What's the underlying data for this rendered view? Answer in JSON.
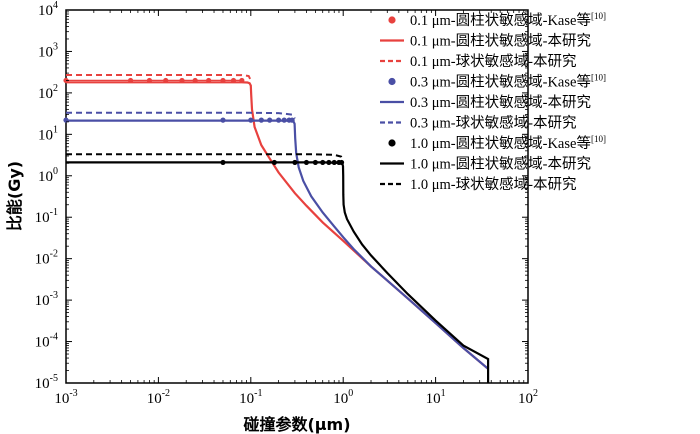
{
  "chart_data": {
    "type": "line",
    "xscale": "log",
    "yscale": "log",
    "xlim": [
      0.001,
      100
    ],
    "ylim": [
      1e-05,
      10000
    ],
    "xlabel": "碰撞参数(μm)",
    "ylabel": "比能(Gy)",
    "x_ticks": [
      {
        "value": 0.001,
        "base": "10",
        "exp": "-3"
      },
      {
        "value": 0.01,
        "base": "10",
        "exp": "-2"
      },
      {
        "value": 0.1,
        "base": "10",
        "exp": "-1"
      },
      {
        "value": 1,
        "base": "10",
        "exp": "0"
      },
      {
        "value": 10,
        "base": "10",
        "exp": "1"
      },
      {
        "value": 100,
        "base": "10",
        "exp": "2"
      }
    ],
    "y_ticks": [
      {
        "value": 1e-05,
        "base": "10",
        "exp": "-5"
      },
      {
        "value": 0.0001,
        "base": "10",
        "exp": "-4"
      },
      {
        "value": 0.001,
        "base": "10",
        "exp": "-3"
      },
      {
        "value": 0.01,
        "base": "10",
        "exp": "-2"
      },
      {
        "value": 0.1,
        "base": "10",
        "exp": "-1"
      },
      {
        "value": 1,
        "base": "10",
        "exp": "0"
      },
      {
        "value": 10,
        "base": "10",
        "exp": "1"
      },
      {
        "value": 100,
        "base": "10",
        "exp": "2"
      },
      {
        "value": 1000,
        "base": "10",
        "exp": "3"
      },
      {
        "value": 10000,
        "base": "10",
        "exp": "4"
      }
    ],
    "legend_position": "top-right",
    "series": [
      {
        "name": "0.1 μm-圆柱状敏感域-Kase等",
        "ref": "[10]",
        "style": "markers",
        "color": "#e8413e",
        "x": [
          0.001,
          0.005,
          0.008,
          0.012,
          0.018,
          0.025,
          0.035,
          0.05,
          0.065,
          0.08
        ],
        "y": [
          200,
          200,
          200,
          200,
          200,
          200,
          200,
          200,
          200,
          200
        ]
      },
      {
        "name": "0.1 μm-圆柱状敏感域-本研究",
        "style": "solid",
        "color": "#e8413e",
        "x": [
          0.001,
          0.05,
          0.08,
          0.092,
          0.097,
          0.1,
          0.101,
          0.103,
          0.11,
          0.13,
          0.16,
          0.2,
          0.3,
          0.4,
          0.6,
          1.0,
          2,
          5,
          10,
          20,
          37
        ],
        "y": [
          180,
          180,
          180,
          178,
          170,
          150,
          90,
          40,
          15,
          5.5,
          2.6,
          1.2,
          0.38,
          0.19,
          0.075,
          0.027,
          0.0065,
          0.0011,
          0.00028,
          7e-05,
          2.2e-05
        ]
      },
      {
        "name": "0.1 μm-球状敏感域-本研究",
        "style": "dashed",
        "color": "#e8413e",
        "x": [
          0.001,
          0.05,
          0.08,
          0.095,
          0.1
        ],
        "y": [
          270,
          270,
          268,
          255,
          200
        ]
      },
      {
        "name": "0.3 μm-圆柱状敏感域-Kase等",
        "ref": "[10]",
        "style": "markers",
        "color": "#4a4fa5",
        "x": [
          0.001,
          0.05,
          0.1,
          0.13,
          0.16,
          0.2,
          0.23,
          0.26,
          0.28
        ],
        "y": [
          22,
          22,
          22,
          22,
          22,
          22,
          22,
          22,
          22
        ]
      },
      {
        "name": "0.3 μm-圆柱状敏感域-本研究",
        "style": "solid",
        "color": "#4a4fa5",
        "x": [
          0.001,
          0.1,
          0.2,
          0.27,
          0.29,
          0.298,
          0.302,
          0.31,
          0.33,
          0.37,
          0.45,
          0.6,
          0.8,
          1.0,
          1.3,
          2,
          5,
          10,
          20,
          37
        ],
        "y": [
          21.5,
          21.5,
          21.5,
          21.2,
          20.5,
          18,
          8,
          3.5,
          1.6,
          0.75,
          0.32,
          0.13,
          0.06,
          0.033,
          0.017,
          0.0065,
          0.0011,
          0.00028,
          7e-05,
          2.2e-05
        ]
      },
      {
        "name": "0.3 μm-球状敏感域-本研究",
        "style": "dashed",
        "color": "#4a4fa5",
        "x": [
          0.001,
          0.1,
          0.2,
          0.28,
          0.3
        ],
        "y": [
          33,
          33,
          32.5,
          30,
          24
        ]
      },
      {
        "name": "1.0 μm-圆柱状敏感域-Kase等",
        "ref": "[10]",
        "style": "markers",
        "color": "#000000",
        "x": [
          0.05,
          0.18,
          0.3,
          0.4,
          0.5,
          0.6,
          0.7,
          0.8,
          0.9,
          0.96
        ],
        "y": [
          2.1,
          2.1,
          2.1,
          2.1,
          2.1,
          2.1,
          2.1,
          2.1,
          2.1,
          2.1
        ]
      },
      {
        "name": "1.0 μm-圆柱状敏感域-本研究",
        "style": "solid",
        "color": "#000000",
        "x": [
          0.001,
          0.3,
          0.6,
          0.9,
          0.98,
          0.995,
          1.0,
          1.003,
          1.01,
          1.04,
          1.1,
          1.3,
          1.6,
          2,
          3,
          5,
          10,
          20,
          37,
          37,
          37
        ],
        "y": [
          2.1,
          2.1,
          2.1,
          2.05,
          1.95,
          1.7,
          1.0,
          0.35,
          0.2,
          0.13,
          0.09,
          0.045,
          0.022,
          0.012,
          0.0045,
          0.0014,
          0.00032,
          8e-05,
          3.8e-05,
          2e-05,
          1e-05
        ]
      },
      {
        "name": "1.0 μm-球状敏感域-本研究",
        "style": "dashed",
        "color": "#000000",
        "x": [
          0.001,
          0.5,
          0.8,
          0.95,
          1.0
        ],
        "y": [
          3.3,
          3.3,
          3.2,
          2.9,
          2.3
        ]
      }
    ]
  }
}
